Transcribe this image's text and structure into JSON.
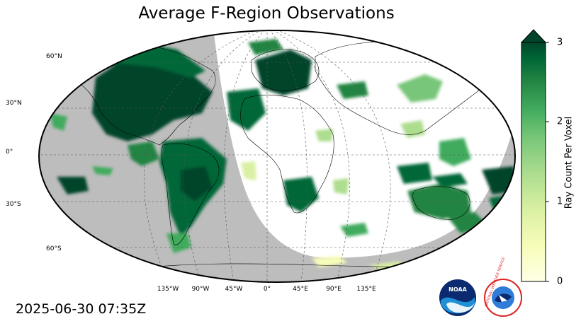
{
  "title": "Average F-Region Observations",
  "timestamp": "2025-06-30 07:35Z",
  "colorbar": {
    "label": "Ray Count Per Voxel",
    "ticks": [
      "0",
      "1",
      "2",
      "3"
    ],
    "range": [
      0,
      3
    ],
    "colors": [
      "#ffffe5",
      "#f7fcb9",
      "#d9f0a3",
      "#addd8e",
      "#78c679",
      "#41ab5d",
      "#238443",
      "#006837",
      "#004529"
    ]
  },
  "map": {
    "projection": "robinson",
    "night_color": "#bdbdbd",
    "day_color": "#ffffff",
    "lat_labels": [
      "60°N",
      "30°N",
      "0°",
      "30°S",
      "60°S"
    ],
    "lon_labels": [
      "135°W",
      "90°W",
      "45°W",
      "0°",
      "45°E",
      "90°E",
      "135°E"
    ]
  },
  "logos": {
    "noaa_text": "NOAA",
    "nws_text": "NATIONAL WEATHER SERVICE"
  }
}
